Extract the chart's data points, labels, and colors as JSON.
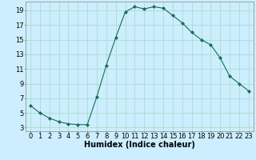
{
  "x": [
    0,
    1,
    2,
    3,
    4,
    5,
    6,
    7,
    8,
    9,
    10,
    11,
    12,
    13,
    14,
    15,
    16,
    17,
    18,
    19,
    20,
    21,
    22,
    23
  ],
  "y": [
    6.0,
    5.0,
    4.3,
    3.8,
    3.5,
    3.4,
    3.4,
    7.2,
    11.5,
    15.3,
    18.8,
    19.5,
    19.2,
    19.5,
    19.3,
    18.3,
    17.3,
    16.0,
    15.0,
    14.3,
    12.5,
    10.0,
    9.0,
    8.0
  ],
  "line_color": "#1a6b5a",
  "marker": "D",
  "marker_size": 2,
  "bg_color": "#cceeff",
  "grid_color": "#aaddcc",
  "xlabel": "Humidex (Indice chaleur)",
  "xlim": [
    -0.5,
    23.5
  ],
  "ylim": [
    2.5,
    20.2
  ],
  "yticks": [
    3,
    5,
    7,
    9,
    11,
    13,
    15,
    17,
    19
  ],
  "xticks": [
    0,
    1,
    2,
    3,
    4,
    5,
    6,
    7,
    8,
    9,
    10,
    11,
    12,
    13,
    14,
    15,
    16,
    17,
    18,
    19,
    20,
    21,
    22,
    23
  ],
  "tick_font_size": 6,
  "label_font_size": 7
}
